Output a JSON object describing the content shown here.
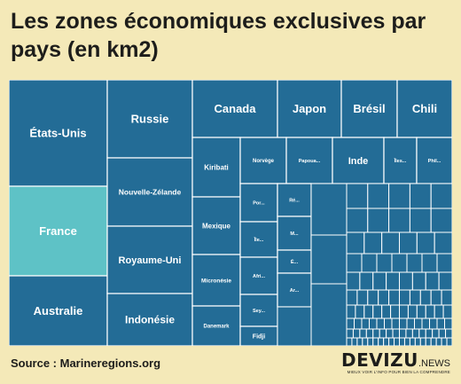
{
  "header": {
    "title": "Les zones économiques exclusives par pays (en km2)"
  },
  "footer": {
    "source": "Source : Marineregions.org"
  },
  "logo": {
    "name": "DEVIZU",
    "suffix": ".NEWS",
    "tagline": "MIEUX VOIR L'INFO POUR BIEN LA COMPRENDRE"
  },
  "colors": {
    "tile": "#236c96",
    "highlight": "#5ec2c6",
    "border": "#ffffff",
    "background": "#f4e9b8",
    "text": "#1d1d1b"
  },
  "chart_data": {
    "type": "treemap",
    "highlight": "France",
    "labels": [
      "États-Unis",
      "France",
      "Australie",
      "Russie",
      "Nouvelle-Zélande",
      "Royaume-Uni",
      "Indonésie",
      "Canada",
      "Japon",
      "Brésil",
      "Chili",
      "Kiribati",
      "Mexique",
      "Micronésie",
      "Danemark",
      "Norvège",
      "Papoua...",
      "Inde",
      "Îles...",
      "Phil...",
      "Por...",
      "Île...",
      "Afri...",
      "Sey...",
      "Fidji",
      "Ré...",
      "M...",
      "É...",
      "Ar..."
    ]
  }
}
